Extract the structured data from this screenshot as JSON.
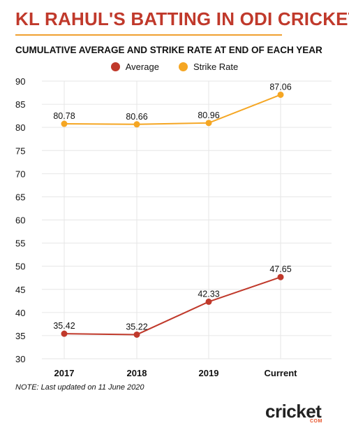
{
  "title": "KL RAHUL'S BATTING IN ODI CRICKET",
  "subtitle": "CUMULATIVE AVERAGE AND STRIKE RATE AT END OF EACH YEAR",
  "note": "NOTE: Last updated on 11 June 2020",
  "logo": {
    "text": "cricket",
    "suffix": "COM"
  },
  "colors": {
    "title": "#c0392b",
    "average": "#c0392b",
    "strike_rate": "#f5a623",
    "rule": "#f0a030"
  },
  "chart_data": {
    "type": "line",
    "categories": [
      "2017",
      "2018",
      "2019",
      "Current"
    ],
    "series": [
      {
        "name": "Average",
        "values": [
          35.42,
          35.22,
          42.33,
          47.65
        ],
        "color": "#c0392b",
        "labels": [
          "35.42",
          "35.22",
          "42.33",
          "47.65"
        ]
      },
      {
        "name": "Strike Rate",
        "values": [
          80.78,
          80.66,
          80.96,
          87.06
        ],
        "color": "#f5a623",
        "labels": [
          "80.78",
          "80.66",
          "80.96",
          "87.06"
        ]
      }
    ],
    "ylim": [
      30,
      90
    ],
    "yticks": [
      "30",
      "35",
      "40",
      "45",
      "50",
      "55",
      "60",
      "65",
      "70",
      "75",
      "80",
      "85",
      "90"
    ],
    "grid": true,
    "legend_position": "top-center"
  }
}
